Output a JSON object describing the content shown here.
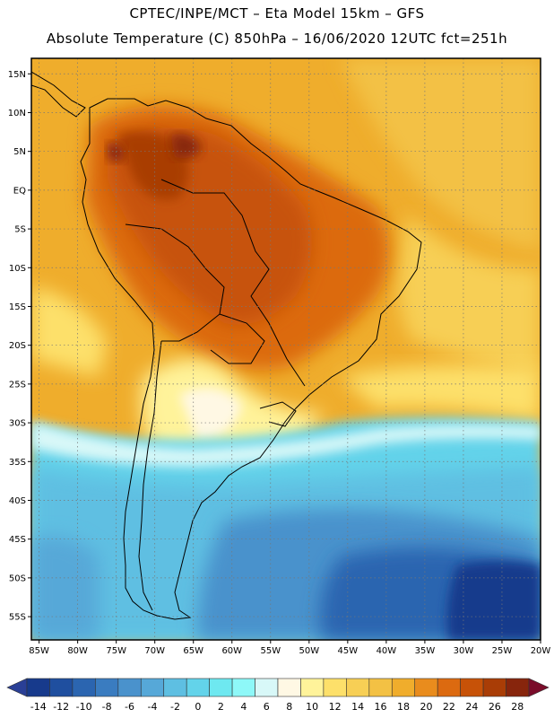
{
  "header": {
    "line1": "CPTEC/INPE/MCT –  Eta Model 15km – GFS",
    "line2": "Absolute Temperature (C) 850hPa – 16/06/2020 12UTC fct=251h"
  },
  "map": {
    "region": "South America",
    "lat_range": [
      -58,
      17
    ],
    "lon_range": [
      -86,
      -20
    ],
    "lat_ticks": [
      "15N",
      "10N",
      "5N",
      "EQ",
      "5S",
      "10S",
      "15S",
      "20S",
      "25S",
      "30S",
      "35S",
      "40S",
      "45S",
      "50S",
      "55S"
    ],
    "lat_values": [
      15,
      10,
      5,
      0,
      -5,
      -10,
      -15,
      -20,
      -25,
      -30,
      -35,
      -40,
      -45,
      -50,
      -55
    ],
    "lon_ticks": [
      "85W",
      "80W",
      "75W",
      "70W",
      "65W",
      "60W",
      "55W",
      "50W",
      "45W",
      "40W",
      "35W",
      "30W",
      "25W",
      "20W"
    ],
    "lon_values": [
      -85,
      -80,
      -75,
      -70,
      -65,
      -60,
      -55,
      -50,
      -45,
      -40,
      -35,
      -30,
      -25,
      -20
    ]
  },
  "colorbar": {
    "labels": [
      "-14",
      "-12",
      "-10",
      "-8",
      "-6",
      "-4",
      "-2",
      "0",
      "2",
      "4",
      "6",
      "8",
      "10",
      "12",
      "14",
      "16",
      "18",
      "20",
      "22",
      "24",
      "26",
      "28"
    ],
    "colors": [
      "#173a8c",
      "#1f4f9f",
      "#2b65b0",
      "#3a7cc0",
      "#4a92cc",
      "#56a8d8",
      "#5ebfe2",
      "#63d3ea",
      "#6ee8f0",
      "#8ef8f8",
      "#d8f8f8",
      "#fff8e4",
      "#fff39a",
      "#fde06a",
      "#f7cf55",
      "#f3c144",
      "#f0ad2c",
      "#e98c1d",
      "#dc6a10",
      "#c75208",
      "#a93d06",
      "#87250c"
    ],
    "under_color": "#2a3f96",
    "over_color": "#7a0c2a"
  }
}
